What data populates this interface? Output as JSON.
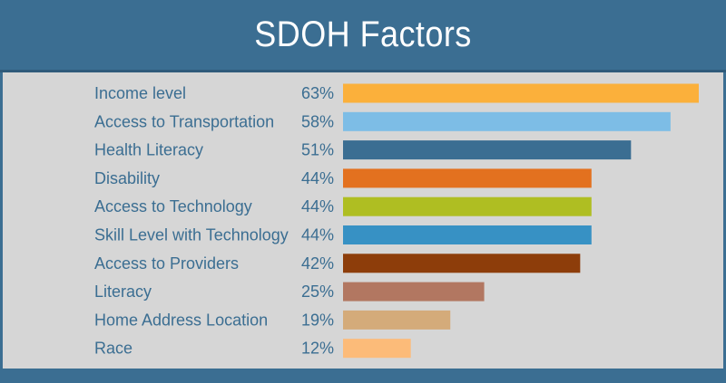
{
  "header": {
    "title": "SDOH Factors"
  },
  "chart_data": {
    "type": "bar",
    "orientation": "horizontal",
    "title": "SDOH Factors",
    "categories": [
      "Income level",
      "Access to Transportation",
      "Health Literacy",
      "Disability",
      "Access to Technology",
      "Skill Level with Technology",
      "Access to Providers",
      "Literacy",
      "Home Address Location",
      "Race"
    ],
    "values": [
      63,
      58,
      51,
      44,
      44,
      44,
      42,
      25,
      19,
      12
    ],
    "value_labels": [
      "63%",
      "58%",
      "51%",
      "44%",
      "44%",
      "44%",
      "42%",
      "25%",
      "19%",
      "12%"
    ],
    "colors": [
      "#fbb03b",
      "#7dbde6",
      "#3b6e92",
      "#e3711f",
      "#afbe22",
      "#3791c4",
      "#8d3d0a",
      "#b27761",
      "#d4ab7a",
      "#fcbb79"
    ],
    "xlim": [
      0,
      63
    ],
    "grid": false,
    "legend": "none"
  }
}
